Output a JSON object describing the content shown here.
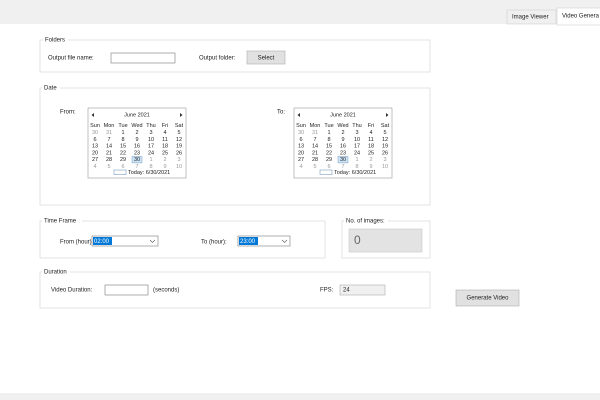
{
  "tabs": [
    "Image Viewer",
    "Video Genera"
  ],
  "folders": {
    "title": "Folders",
    "output_file_name_label": "Output file name:",
    "output_folder_label": "Output folder:",
    "select_button": "Select"
  },
  "date": {
    "title": "Date",
    "from_label": "From:",
    "to_label": "To:",
    "calendars": [
      {
        "month": "June 2021",
        "weekdays": [
          "Sun",
          "Mon",
          "Tue",
          "Wed",
          "Thu",
          "Fri",
          "Sat"
        ],
        "weeks": [
          [
            30,
            31,
            1,
            2,
            3,
            4,
            5
          ],
          [
            6,
            7,
            8,
            9,
            10,
            11,
            12
          ],
          [
            13,
            14,
            15,
            16,
            17,
            18,
            19
          ],
          [
            20,
            21,
            22,
            23,
            24,
            25,
            26
          ],
          [
            27,
            28,
            29,
            30,
            1,
            2,
            3
          ],
          [
            4,
            5,
            6,
            7,
            8,
            9,
            10
          ]
        ],
        "today": "Today: 6/30/2021"
      },
      {
        "month": "June 2021",
        "weekdays": [
          "Sun",
          "Mon",
          "Tue",
          "Wed",
          "Thu",
          "Fri",
          "Sat"
        ],
        "weeks": [
          [
            30,
            31,
            1,
            2,
            3,
            4,
            5
          ],
          [
            6,
            7,
            8,
            9,
            10,
            11,
            12
          ],
          [
            13,
            14,
            15,
            16,
            17,
            18,
            19
          ],
          [
            20,
            21,
            22,
            23,
            24,
            25,
            26
          ],
          [
            27,
            28,
            29,
            30,
            1,
            2,
            3
          ],
          [
            4,
            5,
            6,
            7,
            8,
            9,
            10
          ]
        ],
        "today": "Today: 6/30/2021"
      }
    ]
  },
  "time_frame": {
    "title": "Time Frame",
    "from_label": "From (hour):",
    "from_value": "02:00",
    "to_label": "To (hour):",
    "to_value": "23:00"
  },
  "images": {
    "title": "No. of images:",
    "count": 0
  },
  "duration": {
    "title": "Duration",
    "video_duration_label": "Video Duration:",
    "seconds_label": "(seconds)",
    "fps_label": "FPS:",
    "fps_value": 24
  },
  "generate_button": "Generate Video"
}
